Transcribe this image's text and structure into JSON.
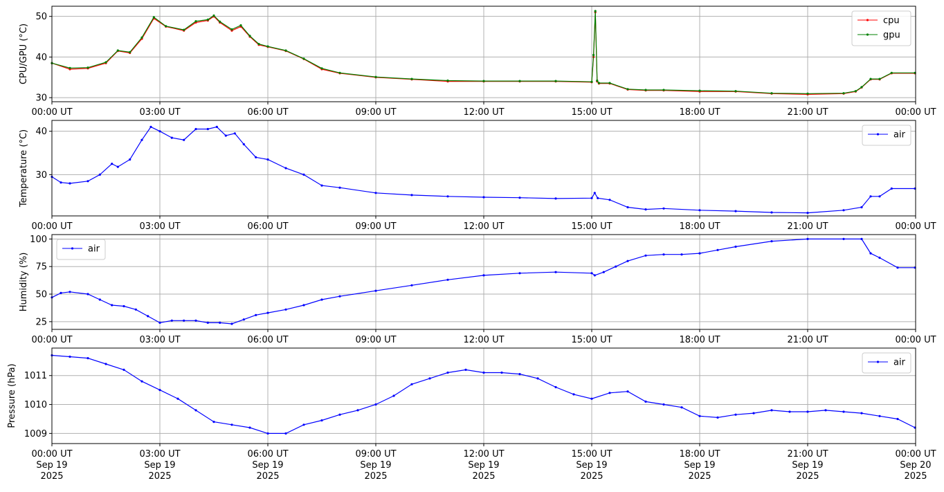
{
  "chart_data": [
    {
      "type": "line",
      "ylabel": "CPU/GPU (°C)",
      "ylim": [
        29,
        52.5
      ],
      "xlim": [
        "2025-09-19 00:00",
        "2025-09-20 00:00"
      ],
      "grid": true,
      "legend": "top-right",
      "yticks": [
        30,
        40,
        50
      ],
      "xtick_labels": [
        "00:00 UT",
        "03:00 UT",
        "06:00 UT",
        "09:00 UT",
        "12:00 UT",
        "15:00 UT",
        "18:00 UT",
        "21:00 UT",
        "00:00 UT"
      ],
      "series": [
        {
          "name": "cpu",
          "color": "#ff0000",
          "x": [
            "00:00",
            "00:30",
            "01:00",
            "01:30",
            "01:50",
            "02:10",
            "02:30",
            "02:50",
            "03:10",
            "03:40",
            "04:00",
            "04:20",
            "04:30",
            "04:40",
            "05:00",
            "05:15",
            "05:30",
            "05:45",
            "06:00",
            "06:30",
            "07:00",
            "07:30",
            "08:00",
            "09:00",
            "10:00",
            "11:00",
            "12:00",
            "13:00",
            "14:00",
            "15:00",
            "15:03",
            "15:06",
            "15:09",
            "15:12",
            "15:30",
            "16:00",
            "16:30",
            "17:00",
            "18:00",
            "19:00",
            "20:00",
            "21:00",
            "22:00",
            "22:20",
            "22:30",
            "22:45",
            "23:00",
            "23:20",
            "23:59"
          ],
          "values": [
            38.5,
            37.0,
            37.2,
            38.5,
            41.5,
            41.0,
            44.5,
            49.5,
            47.5,
            46.5,
            48.5,
            49.0,
            50.0,
            48.5,
            46.5,
            47.5,
            45.0,
            43.0,
            42.5,
            41.5,
            39.5,
            37.0,
            36.0,
            35.0,
            34.5,
            34.0,
            34.0,
            34.0,
            34.0,
            33.8,
            40.0,
            51.0,
            34.0,
            33.5,
            33.5,
            32.0,
            31.8,
            31.8,
            31.5,
            31.5,
            31.0,
            30.8,
            31.0,
            31.5,
            32.5,
            34.5,
            34.5,
            36.0,
            36.0
          ]
        },
        {
          "name": "gpu",
          "color": "#008000",
          "x": [
            "00:00",
            "00:30",
            "01:00",
            "01:30",
            "01:50",
            "02:10",
            "02:30",
            "02:50",
            "03:10",
            "03:40",
            "04:00",
            "04:20",
            "04:30",
            "04:40",
            "05:00",
            "05:15",
            "05:30",
            "05:45",
            "06:00",
            "06:30",
            "07:00",
            "07:30",
            "08:00",
            "09:00",
            "10:00",
            "11:00",
            "12:00",
            "13:00",
            "14:00",
            "15:00",
            "15:03",
            "15:06",
            "15:09",
            "15:12",
            "15:30",
            "16:00",
            "16:30",
            "17:00",
            "18:00",
            "19:00",
            "20:00",
            "21:00",
            "22:00",
            "22:20",
            "22:30",
            "22:45",
            "23:00",
            "23:20",
            "23:59"
          ],
          "values": [
            38.5,
            37.3,
            37.4,
            38.7,
            41.6,
            41.2,
            44.8,
            49.8,
            47.6,
            46.7,
            48.8,
            49.2,
            50.2,
            48.7,
            46.8,
            47.8,
            45.2,
            43.2,
            42.6,
            41.6,
            39.6,
            37.2,
            36.1,
            35.1,
            34.6,
            34.2,
            34.1,
            34.1,
            34.1,
            33.9,
            40.5,
            51.3,
            34.2,
            33.6,
            33.6,
            32.1,
            31.9,
            31.9,
            31.7,
            31.6,
            31.1,
            31.0,
            31.1,
            31.6,
            32.6,
            34.6,
            34.6,
            36.1,
            36.1
          ]
        }
      ]
    },
    {
      "type": "line",
      "ylabel": "Temperature (°C)",
      "ylim": [
        20.5,
        42.5
      ],
      "xlim": [
        "2025-09-19 00:00",
        "2025-09-20 00:00"
      ],
      "grid": true,
      "legend": "top-right",
      "yticks": [
        30,
        40
      ],
      "xtick_labels": [
        "00:00 UT",
        "03:00 UT",
        "06:00 UT",
        "09:00 UT",
        "12:00 UT",
        "15:00 UT",
        "18:00 UT",
        "21:00 UT",
        "00:00 UT"
      ],
      "series": [
        {
          "name": "air",
          "color": "#0000ff",
          "x": [
            "00:00",
            "00:15",
            "00:30",
            "01:00",
            "01:20",
            "01:40",
            "01:50",
            "02:10",
            "02:30",
            "02:45",
            "03:00",
            "03:20",
            "03:40",
            "04:00",
            "04:20",
            "04:35",
            "04:50",
            "05:05",
            "05:20",
            "05:40",
            "06:00",
            "06:30",
            "07:00",
            "07:30",
            "08:00",
            "09:00",
            "10:00",
            "11:00",
            "12:00",
            "13:00",
            "14:00",
            "15:00",
            "15:05",
            "15:10",
            "15:30",
            "16:00",
            "16:30",
            "17:00",
            "18:00",
            "19:00",
            "20:00",
            "21:00",
            "22:00",
            "22:30",
            "22:45",
            "23:00",
            "23:20",
            "23:59"
          ],
          "values": [
            29.5,
            28.2,
            28.0,
            28.5,
            30.0,
            32.5,
            31.8,
            33.5,
            38.0,
            41.0,
            40.0,
            38.5,
            38.0,
            40.5,
            40.5,
            41.0,
            39.0,
            39.5,
            37.0,
            34.0,
            33.5,
            31.5,
            30.0,
            27.5,
            27.0,
            25.8,
            25.3,
            25.0,
            24.8,
            24.7,
            24.5,
            24.6,
            25.8,
            24.6,
            24.2,
            22.5,
            22.0,
            22.2,
            21.8,
            21.6,
            21.3,
            21.2,
            21.8,
            22.5,
            25.0,
            25.0,
            26.8,
            26.8
          ]
        }
      ]
    },
    {
      "type": "line",
      "ylabel": "Humidity (%)",
      "ylim": [
        18,
        104
      ],
      "xlim": [
        "2025-09-19 00:00",
        "2025-09-20 00:00"
      ],
      "grid": true,
      "legend": "top-left",
      "yticks": [
        25,
        50,
        75,
        100
      ],
      "xtick_labels": [
        "00:00 UT",
        "03:00 UT",
        "06:00 UT",
        "09:00 UT",
        "12:00 UT",
        "15:00 UT",
        "18:00 UT",
        "21:00 UT",
        "00:00 UT"
      ],
      "series": [
        {
          "name": "air",
          "color": "#0000ff",
          "x": [
            "00:00",
            "00:15",
            "00:30",
            "01:00",
            "01:20",
            "01:40",
            "02:00",
            "02:20",
            "02:40",
            "03:00",
            "03:20",
            "03:40",
            "04:00",
            "04:20",
            "04:40",
            "05:00",
            "05:20",
            "05:40",
            "06:00",
            "06:30",
            "07:00",
            "07:30",
            "08:00",
            "09:00",
            "10:00",
            "11:00",
            "12:00",
            "13:00",
            "14:00",
            "15:00",
            "15:05",
            "15:20",
            "15:40",
            "16:00",
            "16:30",
            "17:00",
            "17:30",
            "18:00",
            "18:30",
            "19:00",
            "20:00",
            "21:00",
            "22:00",
            "22:30",
            "22:45",
            "23:00",
            "23:30",
            "23:59"
          ],
          "values": [
            47,
            51,
            52,
            50,
            45,
            40,
            39,
            36,
            30,
            24,
            26,
            26,
            26,
            24,
            24,
            23,
            27,
            31,
            33,
            36,
            40,
            45,
            48,
            53,
            58,
            63,
            67,
            69,
            70,
            69,
            67,
            70,
            75,
            80,
            85,
            86,
            86,
            87,
            90,
            93,
            98,
            100,
            100,
            100,
            87,
            83,
            74,
            74
          ]
        }
      ]
    },
    {
      "type": "line",
      "ylabel": "Pressure (hPa)",
      "ylim": [
        1008.65,
        1011.95
      ],
      "xlim": [
        "2025-09-19 00:00",
        "2025-09-20 00:00"
      ],
      "grid": true,
      "legend": "top-right",
      "yticks": [
        1009,
        1010,
        1011
      ],
      "xtick_labels": [
        "00:00 UT\nSep 19\n2025",
        "03:00 UT\nSep 19\n2025",
        "06:00 UT\nSep 19\n2025",
        "09:00 UT\nSep 19\n2025",
        "12:00 UT\nSep 19\n2025",
        "15:00 UT\nSep 19\n2025",
        "18:00 UT\nSep 19\n2025",
        "21:00 UT\nSep 19\n2025",
        "00:00 UT\nSep 20\n2025"
      ],
      "series": [
        {
          "name": "air",
          "color": "#0000ff",
          "x": [
            "00:00",
            "00:30",
            "01:00",
            "01:30",
            "02:00",
            "02:30",
            "03:00",
            "03:30",
            "04:00",
            "04:30",
            "05:00",
            "05:30",
            "06:00",
            "06:30",
            "07:00",
            "07:30",
            "08:00",
            "08:30",
            "09:00",
            "09:30",
            "10:00",
            "10:30",
            "11:00",
            "11:30",
            "12:00",
            "12:30",
            "13:00",
            "13:30",
            "14:00",
            "14:30",
            "15:00",
            "15:30",
            "16:00",
            "16:30",
            "17:00",
            "17:30",
            "18:00",
            "18:30",
            "19:00",
            "19:30",
            "20:00",
            "20:30",
            "21:00",
            "21:30",
            "22:00",
            "22:30",
            "23:00",
            "23:30",
            "23:59"
          ],
          "values": [
            1011.7,
            1011.65,
            1011.6,
            1011.4,
            1011.2,
            1010.8,
            1010.5,
            1010.2,
            1009.8,
            1009.4,
            1009.3,
            1009.2,
            1009.0,
            1009.0,
            1009.3,
            1009.45,
            1009.65,
            1009.8,
            1010.0,
            1010.3,
            1010.7,
            1010.9,
            1011.1,
            1011.2,
            1011.1,
            1011.1,
            1011.05,
            1010.9,
            1010.6,
            1010.35,
            1010.2,
            1010.4,
            1010.45,
            1010.1,
            1010.0,
            1009.9,
            1009.6,
            1009.55,
            1009.65,
            1009.7,
            1009.8,
            1009.75,
            1009.75,
            1009.8,
            1009.75,
            1009.7,
            1009.6,
            1009.5,
            1009.2
          ]
        }
      ]
    }
  ]
}
